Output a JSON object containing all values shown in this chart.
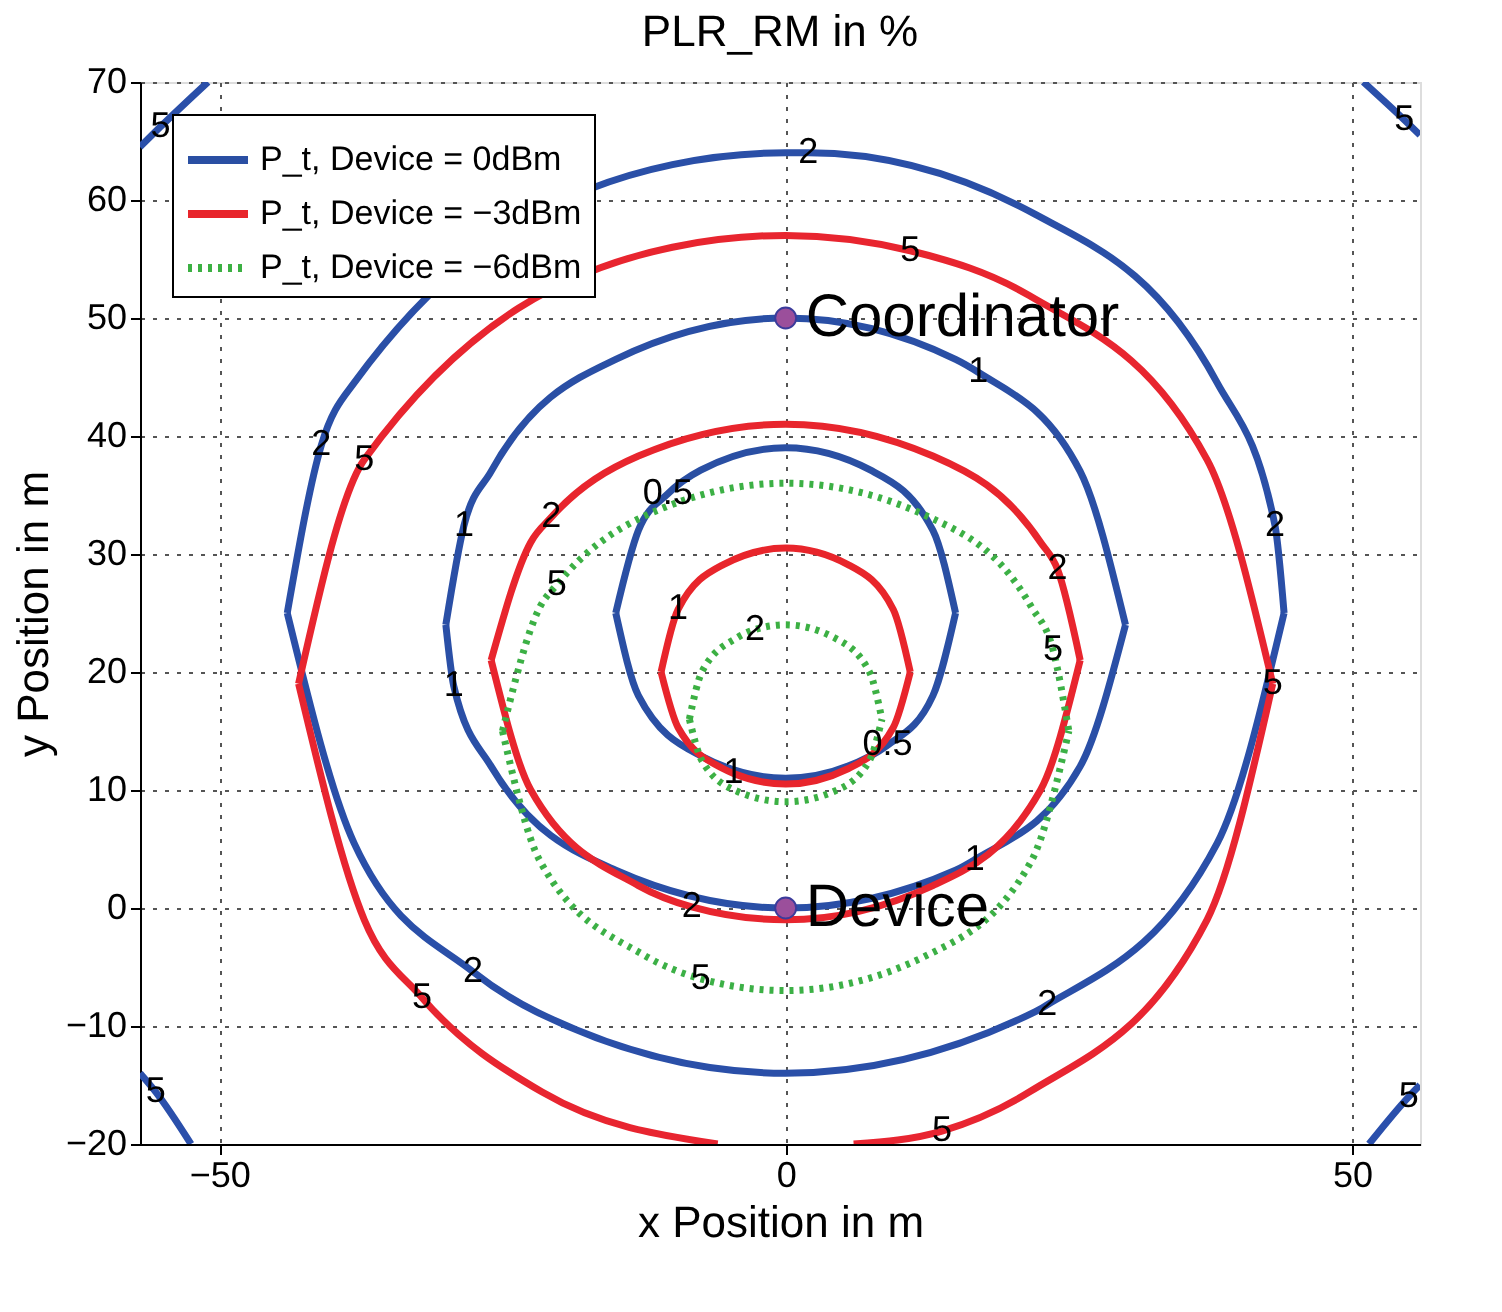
{
  "chart_data": {
    "type": "line",
    "title": "PLR_RM in %",
    "xlabel": "x Position in m",
    "ylabel": "y Position in m",
    "xlim": [
      -57,
      56
    ],
    "ylim": [
      -20,
      70
    ],
    "xticks": [
      -50,
      0,
      50
    ],
    "yticks": [
      -20,
      -10,
      0,
      10,
      20,
      30,
      40,
      50,
      60,
      70
    ],
    "grid": true,
    "legend": "top left",
    "series": [
      {
        "name": "P_t, Device =  0dBm",
        "color": "#2a4fa3",
        "line_style": "solid",
        "x": [
          -15,
          -13,
          -10.4,
          -7.5,
          0,
          7.5,
          13,
          15
        ],
        "values": [
          25,
          32,
          35.1,
          37.1,
          39,
          37.1,
          32,
          25
        ]
      },
      {
        "color": "#2a4fa4",
        "line_style": "solid",
        "x": [
          -15,
          -13,
          -7.5,
          0,
          7.5,
          9,
          13,
          15
        ],
        "values": [
          25,
          18,
          12.9,
          11,
          12.9,
          13.8,
          18,
          25
        ]
      },
      {
        "color": "#2a4fa5",
        "line_style": "solid",
        "x": [
          -30,
          -28.4,
          -26,
          -15,
          0,
          15,
          17,
          26,
          30
        ],
        "values": [
          24,
          32.4,
          37,
          46.5,
          50,
          46.5,
          45.4,
          37,
          24
        ]
      },
      {
        "color": "#2a4fa6",
        "line_style": "solid",
        "x": [
          -30,
          -29.3,
          -26,
          -15,
          0,
          15,
          16.7,
          26,
          30
        ],
        "values": [
          24,
          18.8,
          12,
          3.2,
          0,
          3.2,
          4.1,
          12,
          24
        ]
      },
      {
        "color": "#2a4fa7",
        "line_style": "solid",
        "x": [
          -44,
          -41,
          -38.1,
          -10,
          0,
          2,
          22,
          38.1,
          43.2,
          44
        ],
        "values": [
          25,
          39.2,
          44.5,
          63,
          64,
          64,
          58.8,
          44.5,
          32.4,
          25
        ]
      },
      {
        "color": "#2a4fa8",
        "line_style": "solid",
        "x": [
          -44,
          -38.1,
          -27.6,
          -22,
          0,
          22,
          23.1,
          38.1,
          44
        ],
        "values": [
          25,
          5.5,
          -5.4,
          -8.8,
          -14,
          -8.8,
          -8.2,
          5.5,
          25
        ]
      },
      {
        "color": "#2a4fa9",
        "line_style": "solid",
        "x": [
          -57,
          -55.2,
          -51
        ],
        "values": [
          64.5,
          66.2,
          70
        ]
      },
      {
        "color": "#2a4faa",
        "line_style": "solid",
        "x": [
          51,
          54.6,
          56
        ],
        "values": [
          70,
          66.8,
          65.5
        ]
      },
      {
        "color": "#2a4fab",
        "line_style": "solid",
        "x": [
          -57,
          -55.6,
          -52.5
        ],
        "values": [
          -14,
          -15.6,
          -20
        ]
      },
      {
        "color": "#2a4fac",
        "line_style": "solid",
        "x": [
          51.5,
          55,
          56
        ],
        "values": [
          -20,
          -16,
          -15
        ]
      },
      {
        "name": "P_t, Device = −3dBm",
        "color": "#e8252b",
        "line_style": "solid",
        "x": [
          -11,
          -9.5,
          -5.5,
          0,
          5.5,
          9.5,
          11
        ],
        "values": [
          20,
          25.3,
          29.1,
          30.5,
          29.1,
          25.3,
          20
        ]
      },
      {
        "color": "#e8252c",
        "line_style": "solid",
        "x": [
          -11,
          -9.5,
          -5.5,
          -4.6,
          0,
          5.5,
          9.5,
          11
        ],
        "values": [
          20,
          15.3,
          11.8,
          11.4,
          10.5,
          11.8,
          15.3,
          20
        ]
      },
      {
        "color": "#e8252d",
        "line_style": "solid",
        "x": [
          -26,
          -22.5,
          -20.7,
          -13,
          0,
          13,
          22.5,
          24,
          26
        ],
        "values": [
          21,
          31,
          33.1,
          38.3,
          41,
          38.3,
          31,
          28.7,
          21
        ]
      },
      {
        "color": "#e8252e",
        "line_style": "solid",
        "x": [
          -26,
          -22.5,
          -13,
          -8.3,
          0,
          13,
          22.5,
          26
        ],
        "values": [
          21,
          10,
          1.9,
          0.1,
          -1,
          1.9,
          10,
          21
        ]
      },
      {
        "color": "#e8252f",
        "line_style": "solid",
        "x": [
          -43,
          -37.2,
          -10,
          0,
          11,
          21.5,
          37.2,
          43
        ],
        "values": [
          19,
          38,
          56,
          57,
          55.7,
          51.9,
          38,
          19
        ]
      },
      {
        "color": "#e82530",
        "line_style": "solid",
        "x": [
          -43,
          -37.2,
          -32.1,
          -21.5,
          -6
        ],
        "values": [
          19,
          -1,
          -7.6,
          -15.6,
          -20
        ]
      },
      {
        "color": "#e82531",
        "line_style": "solid",
        "x": [
          6,
          13.8,
          21.5,
          37.2,
          43
        ],
        "values": [
          -20,
          -18.9,
          -15.6,
          -1,
          19
        ]
      },
      {
        "name": "P_t, Device = −6dBm",
        "color": "#3cb043",
        "line_style": "dotted",
        "x": [
          -8.5,
          -7.4,
          -4.3,
          -2.7,
          0,
          4.3,
          7.4,
          8.5
        ],
        "values": [
          16,
          20,
          22.9,
          23.6,
          24,
          22.9,
          20,
          16
        ]
      },
      {
        "color": "#3cb044",
        "line_style": "dotted",
        "x": [
          -8.5,
          -7.4,
          -4.3,
          0,
          4.3,
          7.4,
          8.5
        ],
        "values": [
          16,
          12.5,
          9.9,
          9,
          9.9,
          12.5,
          16
        ]
      },
      {
        "color": "#3cb045",
        "line_style": "dotted",
        "x": [
          -25,
          -21.7,
          -20.2,
          -12.5,
          0,
          12.5,
          21.7,
          23.6,
          25
        ],
        "values": [
          15,
          25.5,
          27.4,
          33.2,
          36,
          33.2,
          25.5,
          21.9,
          15
        ]
      },
      {
        "color": "#3cb046",
        "line_style": "dotted",
        "x": [
          -25,
          -21.7,
          -12.5,
          -7.5,
          0,
          12.5,
          21.7,
          25
        ],
        "values": [
          15,
          4,
          -4,
          -6,
          -7,
          -4,
          4,
          15
        ]
      },
      {
        "name": "Coordinator",
        "type": "scatter",
        "marker": "circle",
        "color": "#9b4f9b",
        "x": [
          0
        ],
        "values": [
          50
        ]
      },
      {
        "name": "Device",
        "type": "scatter",
        "marker": "circle",
        "color": "#9b4f9b",
        "x": [
          0
        ],
        "values": [
          0
        ]
      }
    ],
    "annotations": [
      {
        "text": "0.5",
        "x": -10.4,
        "y": 35.1
      },
      {
        "text": "0.5",
        "x": 9,
        "y": 13.8
      },
      {
        "text": "1",
        "x": 17,
        "y": 45.4
      },
      {
        "text": "1",
        "x": -28.4,
        "y": 32.4
      },
      {
        "text": "1",
        "x": -29.3,
        "y": 18.8
      },
      {
        "text": "1",
        "x": 16.7,
        "y": 4.1
      },
      {
        "text": "2",
        "x": 43.2,
        "y": 32.4
      },
      {
        "text": "2",
        "x": 2,
        "y": 64
      },
      {
        "text": "2",
        "x": -41,
        "y": 39.2
      },
      {
        "text": "2",
        "x": -27.6,
        "y": -5.4
      },
      {
        "text": "2",
        "x": 23.1,
        "y": -8.2
      },
      {
        "text": "5",
        "x": -55.2,
        "y": 66.2
      },
      {
        "text": "5",
        "x": 54.6,
        "y": 66.8
      },
      {
        "text": "5",
        "x": -55.6,
        "y": -15.6
      },
      {
        "text": "5",
        "x": 55,
        "y": -16
      },
      {
        "text": "1",
        "x": -9.5,
        "y": 25.3
      },
      {
        "text": "1",
        "x": -4.6,
        "y": 11.4
      },
      {
        "text": "2",
        "x": 24,
        "y": 28.7
      },
      {
        "text": "2",
        "x": -20.7,
        "y": 33.1
      },
      {
        "text": "2",
        "x": -8.3,
        "y": 0.1
      },
      {
        "text": "5",
        "x": 13.8,
        "y": -18.9
      },
      {
        "text": "5",
        "x": 43,
        "y": 19
      },
      {
        "text": "5",
        "x": 11,
        "y": 55.7
      },
      {
        "text": "5",
        "x": -37.2,
        "y": 38
      },
      {
        "text": "5",
        "x": -32.1,
        "y": -7.6
      },
      {
        "text": "2",
        "x": -2.7,
        "y": 23.6
      },
      {
        "text": "5",
        "x": 23.6,
        "y": 21.9
      },
      {
        "text": "5",
        "x": -20.2,
        "y": 27.4
      },
      {
        "text": "5",
        "x": -7.5,
        "y": -6
      }
    ]
  }
}
